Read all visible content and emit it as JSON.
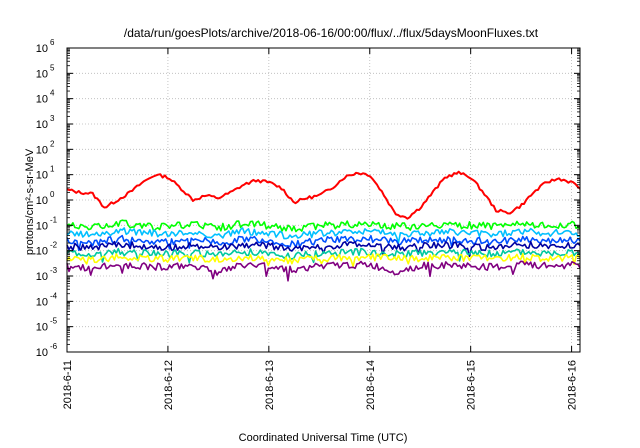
{
  "chart_data": {
    "type": "line",
    "title": "/data/run/goesPlots/archive/2018-06-16/00:00/flux/../flux/5daysMoonFluxes.txt",
    "xlabel": "Coordinated Universal Time (UTC)",
    "ylabel": "protons/cm²-s-sr-MeV",
    "yscale": "log",
    "ylim": [
      1e-06,
      1000000.0
    ],
    "xlim": [
      "2018-06-11",
      "2018-06-16 02:00"
    ],
    "grid": true,
    "legend": "none",
    "x_ticks": [
      "2018-6-11",
      "2018-6-12",
      "2018-6-13",
      "2018-6-14",
      "2018-6-15",
      "2018-6-16"
    ],
    "y_ticks": [
      {
        "base": "10",
        "exp": "-6"
      },
      {
        "base": "10",
        "exp": "-5"
      },
      {
        "base": "10",
        "exp": "-4"
      },
      {
        "base": "10",
        "exp": "-3"
      },
      {
        "base": "10",
        "exp": "-2"
      },
      {
        "base": "10",
        "exp": "-1"
      },
      {
        "base": "10",
        "exp": "0"
      },
      {
        "base": "10",
        "exp": "1"
      },
      {
        "base": "10",
        "exp": "2"
      },
      {
        "base": "10",
        "exp": "3"
      },
      {
        "base": "10",
        "exp": "4"
      },
      {
        "base": "10",
        "exp": "5"
      },
      {
        "base": "10",
        "exp": "6"
      }
    ],
    "series": [
      {
        "color": "#ff0000",
        "x": [
          "2018-06-11 00:00",
          "2018-06-11 03:00",
          "2018-06-11 06:00",
          "2018-06-11 09:00",
          "2018-06-11 12:00",
          "2018-06-11 15:00",
          "2018-06-11 18:00",
          "2018-06-11 21:00",
          "2018-06-12 00:00",
          "2018-06-12 03:00",
          "2018-06-12 06:00",
          "2018-06-12 09:00",
          "2018-06-12 12:00",
          "2018-06-12 15:00",
          "2018-06-12 18:00",
          "2018-06-12 21:00",
          "2018-06-13 00:00",
          "2018-06-13 03:00",
          "2018-06-13 06:00",
          "2018-06-13 09:00",
          "2018-06-13 12:00",
          "2018-06-13 15:00",
          "2018-06-13 18:00",
          "2018-06-13 21:00",
          "2018-06-14 00:00",
          "2018-06-14 03:00",
          "2018-06-14 06:00",
          "2018-06-14 09:00",
          "2018-06-14 12:00",
          "2018-06-14 15:00",
          "2018-06-14 18:00",
          "2018-06-14 21:00",
          "2018-06-15 00:00",
          "2018-06-15 03:00",
          "2018-06-15 06:00",
          "2018-06-15 09:00",
          "2018-06-15 12:00",
          "2018-06-15 15:00",
          "2018-06-15 18:00",
          "2018-06-15 21:00",
          "2018-06-16 00:00",
          "2018-06-16 02:00"
        ],
        "values": [
          2.5,
          2,
          1.8,
          0.5,
          1,
          2,
          5,
          10,
          8,
          3,
          1,
          1.5,
          1.2,
          2,
          4,
          6,
          5,
          3,
          0.8,
          1.2,
          1.5,
          3,
          8,
          12,
          10,
          2,
          0.3,
          0.2,
          0.5,
          2,
          8,
          12,
          8,
          2,
          0.4,
          0.3,
          0.6,
          2,
          5,
          7,
          5,
          3
        ]
      },
      {
        "color": "#00ff00",
        "x": [
          "2018-06-11 00:00",
          "2018-06-11 06:00",
          "2018-06-11 12:00",
          "2018-06-11 18:00",
          "2018-06-12 00:00",
          "2018-06-12 06:00",
          "2018-06-12 12:00",
          "2018-06-12 18:00",
          "2018-06-13 00:00",
          "2018-06-13 06:00",
          "2018-06-13 12:00",
          "2018-06-13 18:00",
          "2018-06-14 00:00",
          "2018-06-14 06:00",
          "2018-06-14 12:00",
          "2018-06-14 18:00",
          "2018-06-15 00:00",
          "2018-06-15 06:00",
          "2018-06-15 12:00",
          "2018-06-15 18:00",
          "2018-06-16 00:00",
          "2018-06-16 02:00"
        ],
        "values": [
          0.1,
          0.08,
          0.12,
          0.1,
          0.09,
          0.11,
          0.08,
          0.12,
          0.1,
          0.07,
          0.1,
          0.11,
          0.12,
          0.09,
          0.1,
          0.11,
          0.1,
          0.09,
          0.12,
          0.1,
          0.11,
          0.09
        ]
      },
      {
        "color": "#00c0ff",
        "x": [
          "2018-06-11 00:00",
          "2018-06-11 06:00",
          "2018-06-11 12:00",
          "2018-06-11 18:00",
          "2018-06-12 00:00",
          "2018-06-12 06:00",
          "2018-06-12 12:00",
          "2018-06-12 18:00",
          "2018-06-13 00:00",
          "2018-06-13 06:00",
          "2018-06-13 12:00",
          "2018-06-13 18:00",
          "2018-06-14 00:00",
          "2018-06-14 06:00",
          "2018-06-14 12:00",
          "2018-06-14 18:00",
          "2018-06-15 00:00",
          "2018-06-15 06:00",
          "2018-06-15 12:00",
          "2018-06-15 18:00",
          "2018-06-16 00:00",
          "2018-06-16 02:00"
        ],
        "values": [
          0.05,
          0.04,
          0.06,
          0.05,
          0.045,
          0.055,
          0.04,
          0.06,
          0.05,
          0.035,
          0.05,
          0.055,
          0.06,
          0.045,
          0.05,
          0.055,
          0.05,
          0.045,
          0.06,
          0.05,
          0.055,
          0.045
        ]
      },
      {
        "color": "#0050ff",
        "x": [
          "2018-06-11 00:00",
          "2018-06-11 06:00",
          "2018-06-11 12:00",
          "2018-06-11 18:00",
          "2018-06-12 00:00",
          "2018-06-12 06:00",
          "2018-06-12 12:00",
          "2018-06-12 18:00",
          "2018-06-13 00:00",
          "2018-06-13 06:00",
          "2018-06-13 12:00",
          "2018-06-13 18:00",
          "2018-06-14 00:00",
          "2018-06-14 06:00",
          "2018-06-14 12:00",
          "2018-06-14 18:00",
          "2018-06-15 00:00",
          "2018-06-15 06:00",
          "2018-06-15 12:00",
          "2018-06-15 18:00",
          "2018-06-16 00:00",
          "2018-06-16 02:00"
        ],
        "values": [
          0.025,
          0.02,
          0.03,
          0.025,
          0.022,
          0.028,
          0.02,
          0.03,
          0.025,
          0.018,
          0.025,
          0.028,
          0.03,
          0.022,
          0.025,
          0.028,
          0.025,
          0.022,
          0.03,
          0.025,
          0.028,
          0.022
        ]
      },
      {
        "color": "#0000a0",
        "x": [
          "2018-06-11 00:00",
          "2018-06-11 06:00",
          "2018-06-11 12:00",
          "2018-06-11 18:00",
          "2018-06-12 00:00",
          "2018-06-12 06:00",
          "2018-06-12 12:00",
          "2018-06-12 18:00",
          "2018-06-13 00:00",
          "2018-06-13 06:00",
          "2018-06-13 12:00",
          "2018-06-13 18:00",
          "2018-06-14 00:00",
          "2018-06-14 06:00",
          "2018-06-14 12:00",
          "2018-06-14 18:00",
          "2018-06-15 00:00",
          "2018-06-15 06:00",
          "2018-06-15 12:00",
          "2018-06-15 18:00",
          "2018-06-16 00:00",
          "2018-06-16 02:00"
        ],
        "values": [
          0.015,
          0.012,
          0.018,
          0.015,
          0.013,
          0.017,
          0.012,
          0.018,
          0.015,
          0.011,
          0.015,
          0.017,
          0.018,
          0.013,
          0.015,
          0.017,
          0.015,
          0.013,
          0.018,
          0.015,
          0.017,
          0.013
        ]
      },
      {
        "color": "#00c8a0",
        "x": [
          "2018-06-11 00:00",
          "2018-06-11 06:00",
          "2018-06-11 12:00",
          "2018-06-11 18:00",
          "2018-06-12 00:00",
          "2018-06-12 06:00",
          "2018-06-12 12:00",
          "2018-06-12 18:00",
          "2018-06-13 00:00",
          "2018-06-13 06:00",
          "2018-06-13 12:00",
          "2018-06-13 18:00",
          "2018-06-14 00:00",
          "2018-06-14 06:00",
          "2018-06-14 12:00",
          "2018-06-14 18:00",
          "2018-06-15 00:00",
          "2018-06-15 06:00",
          "2018-06-15 12:00",
          "2018-06-15 18:00",
          "2018-06-16 00:00",
          "2018-06-16 02:00"
        ],
        "values": [
          0.008,
          0.007,
          0.009,
          0.008,
          0.0075,
          0.0085,
          0.007,
          0.009,
          0.008,
          0.006,
          0.008,
          0.0085,
          0.009,
          0.0075,
          0.008,
          0.0085,
          0.008,
          0.0075,
          0.009,
          0.008,
          0.0085,
          0.0075
        ]
      },
      {
        "color": "#ffff00",
        "x": [
          "2018-06-11 00:00",
          "2018-06-11 06:00",
          "2018-06-11 12:00",
          "2018-06-11 18:00",
          "2018-06-12 00:00",
          "2018-06-12 06:00",
          "2018-06-12 12:00",
          "2018-06-12 18:00",
          "2018-06-13 00:00",
          "2018-06-13 06:00",
          "2018-06-13 12:00",
          "2018-06-13 18:00",
          "2018-06-14 00:00",
          "2018-06-14 06:00",
          "2018-06-14 12:00",
          "2018-06-14 18:00",
          "2018-06-15 00:00",
          "2018-06-15 06:00",
          "2018-06-15 12:00",
          "2018-06-15 18:00",
          "2018-06-16 00:00",
          "2018-06-16 02:00"
        ],
        "values": [
          0.005,
          0.0045,
          0.0055,
          0.005,
          0.0048,
          0.0052,
          0.0045,
          0.0055,
          0.005,
          0.004,
          0.005,
          0.0052,
          0.0055,
          0.0048,
          0.005,
          0.0052,
          0.005,
          0.0048,
          0.0055,
          0.005,
          0.0052,
          0.0048
        ]
      },
      {
        "color": "#800080",
        "x": [
          "2018-06-11 00:00",
          "2018-06-11 06:00",
          "2018-06-11 12:00",
          "2018-06-11 18:00",
          "2018-06-12 00:00",
          "2018-06-12 06:00",
          "2018-06-12 12:00",
          "2018-06-12 18:00",
          "2018-06-13 00:00",
          "2018-06-13 06:00",
          "2018-06-13 12:00",
          "2018-06-13 18:00",
          "2018-06-14 00:00",
          "2018-06-14 06:00",
          "2018-06-14 12:00",
          "2018-06-14 18:00",
          "2018-06-15 00:00",
          "2018-06-15 06:00",
          "2018-06-15 12:00",
          "2018-06-15 18:00",
          "2018-06-16 00:00",
          "2018-06-16 02:00"
        ],
        "values": [
          0.0025,
          0.002,
          0.0028,
          0.0025,
          0.0022,
          0.0027,
          0.0015,
          0.0028,
          0.0025,
          0.0018,
          0.0025,
          0.0027,
          0.0028,
          0.0015,
          0.0025,
          0.0027,
          0.0025,
          0.0022,
          0.0028,
          0.0025,
          0.0027,
          0.0022
        ]
      }
    ]
  }
}
